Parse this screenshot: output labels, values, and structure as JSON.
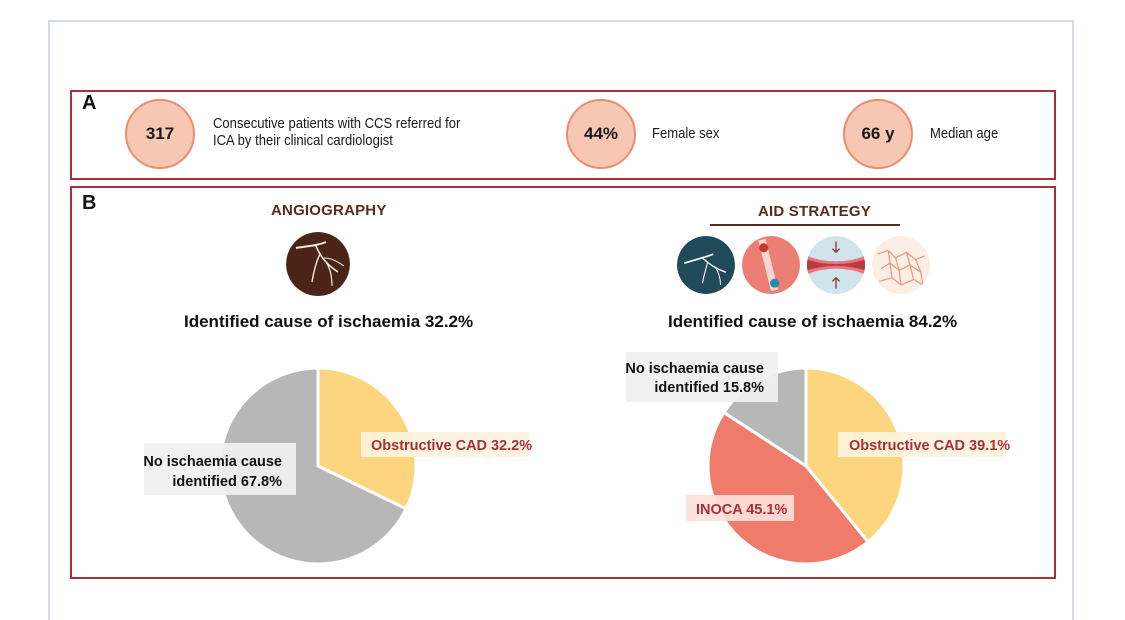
{
  "panel_a": {
    "letter": "A",
    "stats": [
      {
        "value": "317",
        "label_line1": "Consecutive patients with CCS referred for",
        "label_line2": "ICA by their clinical cardiologist"
      },
      {
        "value": "44%",
        "label_line1": "Female sex",
        "label_line2": ""
      },
      {
        "value": "66 y",
        "label_line1": "Median age",
        "label_line2": ""
      }
    ]
  },
  "panel_b": {
    "letter": "B",
    "left": {
      "title": "ANGIOGRAPHY",
      "caption": "Identified cause of ischaemia 32.2%",
      "icon": "angiography-vessel-icon"
    },
    "right": {
      "title": "AID STRATEGY",
      "caption": "Identified cause of ischaemia 84.2%",
      "icons": [
        "angiography-vessel-icon",
        "pressure-wire-icon",
        "vessel-constriction-icon",
        "microvascular-network-icon"
      ]
    }
  },
  "colors": {
    "border": "#a8303a",
    "obstructive": "#fdd57e",
    "inoca": "#ef7b6b",
    "none": "#b7b7b7",
    "label_red": "#a8303a",
    "stat_circle": "#f6c8b4"
  },
  "chart_data": [
    {
      "type": "pie",
      "title": "ANGIOGRAPHY",
      "slices": [
        {
          "label": "Obstructive CAD 32.2%",
          "value": 32.2,
          "color": "#fdd57e"
        },
        {
          "label_line1": "No ischaemia cause",
          "label_line2": "identified 67.8%",
          "value": 67.8,
          "color": "#b7b7b7"
        }
      ]
    },
    {
      "type": "pie",
      "title": "AID STRATEGY",
      "slices": [
        {
          "label": "Obstructive CAD 39.1%",
          "value": 39.1,
          "color": "#fdd57e"
        },
        {
          "label": "INOCA 45.1%",
          "value": 45.1,
          "color": "#ef7b6b"
        },
        {
          "label_line1": "No ischaemia cause",
          "label_line2": "identified 15.8%",
          "value": 15.8,
          "color": "#b7b7b7"
        }
      ]
    }
  ]
}
